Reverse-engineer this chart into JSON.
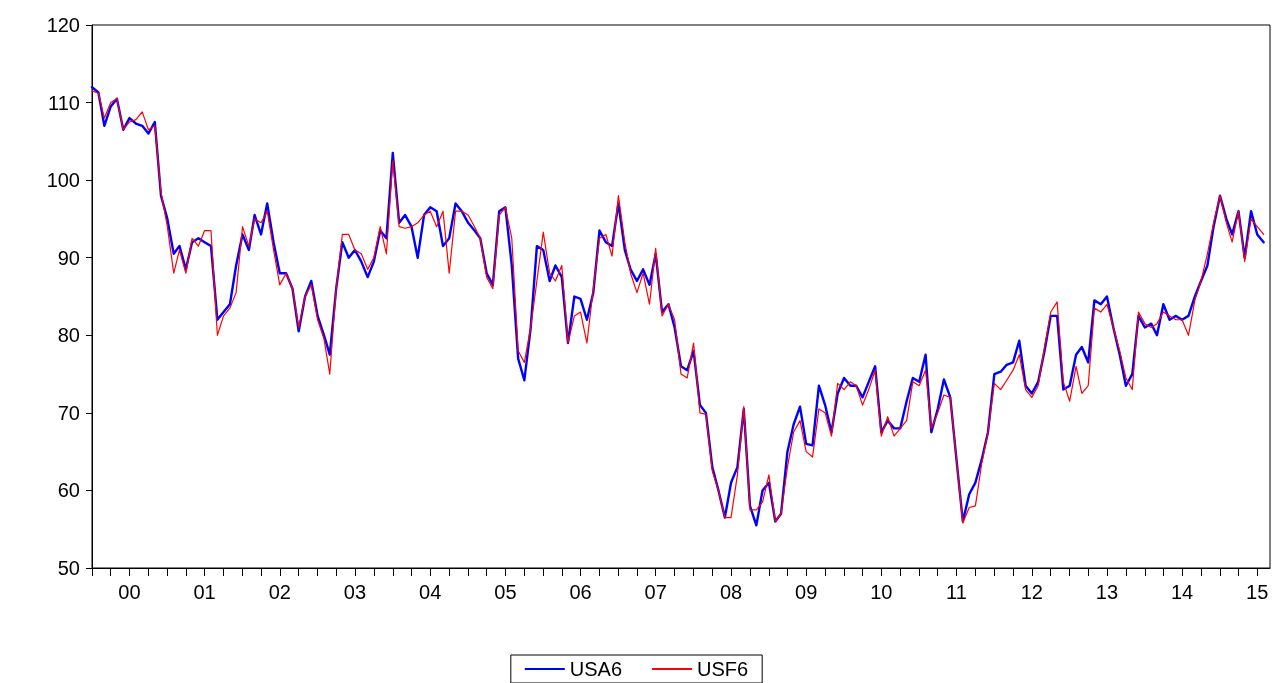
{
  "chart_data": {
    "type": "line",
    "x": [
      "2000-01",
      "2000-02",
      "2000-03",
      "2000-04",
      "2000-05",
      "2000-06",
      "2000-07",
      "2000-08",
      "2000-09",
      "2000-10",
      "2000-11",
      "2000-12",
      "2001-01",
      "2001-02",
      "2001-03",
      "2001-04",
      "2001-05",
      "2001-06",
      "2001-07",
      "2001-08",
      "2001-09",
      "2001-10",
      "2001-11",
      "2001-12",
      "2002-01",
      "2002-02",
      "2002-03",
      "2002-04",
      "2002-05",
      "2002-06",
      "2002-07",
      "2002-08",
      "2002-09",
      "2002-10",
      "2002-11",
      "2002-12",
      "2003-01",
      "2003-02",
      "2003-03",
      "2003-04",
      "2003-05",
      "2003-06",
      "2003-07",
      "2003-08",
      "2003-09",
      "2003-10",
      "2003-11",
      "2003-12",
      "2004-01",
      "2004-02",
      "2004-03",
      "2004-04",
      "2004-05",
      "2004-06",
      "2004-07",
      "2004-08",
      "2004-09",
      "2004-10",
      "2004-11",
      "2004-12",
      "2005-01",
      "2005-02",
      "2005-03",
      "2005-04",
      "2005-05",
      "2005-06",
      "2005-07",
      "2005-08",
      "2005-09",
      "2005-10",
      "2005-11",
      "2005-12",
      "2006-01",
      "2006-02",
      "2006-03",
      "2006-04",
      "2006-05",
      "2006-06",
      "2006-07",
      "2006-08",
      "2006-09",
      "2006-10",
      "2006-11",
      "2006-12",
      "2007-01",
      "2007-02",
      "2007-03",
      "2007-04",
      "2007-05",
      "2007-06",
      "2007-07",
      "2007-08",
      "2007-09",
      "2007-10",
      "2007-11",
      "2007-12",
      "2008-01",
      "2008-02",
      "2008-03",
      "2008-04",
      "2008-05",
      "2008-06",
      "2008-07",
      "2008-08",
      "2008-09",
      "2008-10",
      "2008-11",
      "2008-12",
      "2009-01",
      "2009-02",
      "2009-03",
      "2009-04",
      "2009-05",
      "2009-06",
      "2009-07",
      "2009-08",
      "2009-09",
      "2009-10",
      "2009-11",
      "2009-12",
      "2010-01",
      "2010-02",
      "2010-03",
      "2010-04",
      "2010-05",
      "2010-06",
      "2010-07",
      "2010-08",
      "2010-09",
      "2010-10",
      "2010-11",
      "2010-12",
      "2011-01",
      "2011-02",
      "2011-03",
      "2011-04",
      "2011-05",
      "2011-06",
      "2011-07",
      "2011-08",
      "2011-09",
      "2011-10",
      "2011-11",
      "2011-12",
      "2012-01",
      "2012-02",
      "2012-03",
      "2012-04",
      "2012-05",
      "2012-06",
      "2012-07",
      "2012-08",
      "2012-09",
      "2012-10",
      "2012-11",
      "2012-12",
      "2013-01",
      "2013-02",
      "2013-03",
      "2013-04",
      "2013-05",
      "2013-06",
      "2013-07",
      "2013-08",
      "2013-09",
      "2013-10",
      "2013-11",
      "2013-12",
      "2014-01",
      "2014-02",
      "2014-03",
      "2014-04",
      "2014-05",
      "2014-06",
      "2014-07",
      "2014-08",
      "2014-09",
      "2014-10",
      "2014-11",
      "2014-12",
      "2015-01",
      "2015-02",
      "2015-03",
      "2015-04",
      "2015-05",
      "2015-06",
      "2015-07",
      "2015-08"
    ],
    "series": [
      {
        "name": "USA6",
        "color": "#0000ff",
        "values": [
          112,
          111.3,
          107,
          109.5,
          110.5,
          106.5,
          108,
          107.3,
          107,
          106,
          107.5,
          98,
          95,
          90.5,
          91.5,
          88.5,
          92,
          92.5,
          92,
          91.5,
          82,
          83,
          84,
          89,
          93,
          91,
          95.5,
          93,
          97,
          92,
          88,
          88,
          86,
          80.5,
          85,
          87,
          82.5,
          80,
          77.5,
          86,
          92,
          90,
          91,
          89.5,
          87.5,
          89.5,
          93.5,
          92.5,
          103.5,
          94.5,
          95.5,
          94,
          90,
          95.5,
          96.5,
          96,
          91.5,
          92.5,
          97,
          96,
          94.5,
          93.5,
          92.5,
          88,
          86.5,
          96,
          96.5,
          89,
          77,
          74.2,
          81,
          91.5,
          91,
          87,
          89,
          87.5,
          79,
          85,
          84.7,
          82,
          85.5,
          93.5,
          92,
          91.5,
          97,
          91,
          88.5,
          87,
          88.5,
          86.5,
          90.5,
          83,
          84,
          81,
          76,
          75.5,
          78,
          71,
          70,
          63,
          60,
          56.5,
          61,
          63,
          70.5,
          58,
          55.5,
          60,
          61,
          56,
          57,
          65,
          68.5,
          70.8,
          66,
          65.8,
          73.5,
          71,
          67.5,
          72.5,
          74.5,
          73.5,
          73.5,
          72,
          74,
          76,
          67.5,
          69,
          68,
          68,
          71.5,
          74.5,
          74,
          77.5,
          67.5,
          70.5,
          74.3,
          72,
          64,
          56,
          59.5,
          61,
          64,
          67.5,
          75,
          75.3,
          76.2,
          76.5,
          79.3,
          73.5,
          72.5,
          74,
          78,
          82.5,
          82.5,
          73,
          73.5,
          77.5,
          78.5,
          76.5,
          84.5,
          84,
          85,
          81,
          77.5,
          73.5,
          75,
          82.5,
          81,
          81.5,
          80,
          84,
          82,
          82.5,
          82,
          82.5,
          85,
          87,
          89,
          94,
          98,
          95,
          93,
          96,
          90,
          96,
          93,
          92
        ]
      },
      {
        "name": "USF6",
        "color": "#ff0000",
        "values": [
          111.5,
          111.2,
          108,
          110,
          110.5,
          106.5,
          107.5,
          107.8,
          108.8,
          106.5,
          107,
          98.5,
          94,
          88,
          91,
          88,
          92.5,
          91.5,
          93.5,
          93.5,
          80,
          82.5,
          83.5,
          85.5,
          94,
          91.5,
          95,
          94.5,
          96,
          91,
          86.5,
          88,
          86,
          81,
          85,
          86.5,
          82,
          79.5,
          75,
          86,
          93,
          93,
          91,
          90.5,
          88.5,
          90,
          94,
          90.5,
          102.5,
          94,
          93.8,
          94,
          94.5,
          95.5,
          96,
          94,
          96,
          88,
          96,
          96,
          95.5,
          94,
          92.5,
          87.5,
          86,
          95.5,
          96.5,
          92.5,
          78,
          76.5,
          81,
          87,
          93.3,
          88,
          87,
          89,
          79,
          82.5,
          83,
          79,
          86,
          92.5,
          93,
          90.2,
          98,
          92,
          88,
          85.5,
          88,
          84,
          91.2,
          82.5,
          84,
          82,
          75,
          74.5,
          79,
          70,
          69.8,
          62.5,
          60,
          56.5,
          56.5,
          62,
          70.8,
          57.5,
          57.5,
          58.5,
          62,
          56,
          57,
          63,
          67.5,
          69,
          65,
          64.3,
          70.5,
          70,
          67,
          73.8,
          73,
          74,
          73.5,
          71,
          73,
          75.5,
          67,
          69.5,
          67,
          68,
          69,
          74,
          73.5,
          75.5,
          68,
          70,
          72.3,
          72,
          64,
          55.8,
          57.8,
          58,
          63.5,
          67.5,
          73.8,
          73,
          74.2,
          75.5,
          77.5,
          73,
          72,
          73.5,
          78.5,
          83,
          84.3,
          74,
          71.5,
          76,
          72.5,
          73.5,
          83.5,
          83,
          84,
          81,
          78,
          74.5,
          73,
          83,
          81.5,
          81,
          81.5,
          83,
          82.5,
          82,
          82,
          80,
          84.5,
          87,
          90.5,
          94.5,
          98,
          94.5,
          92,
          96,
          89.5,
          95,
          94,
          93
        ]
      }
    ],
    "xlim": [
      "2000-01",
      "2015-09"
    ],
    "xticks": [
      {
        "value": "2000-01",
        "label": null
      },
      {
        "value": "2000-04",
        "label": null
      },
      {
        "value": "2000-07",
        "label": "00"
      },
      {
        "value": "2000-10",
        "label": null
      },
      {
        "value": "2001-01",
        "label": null
      },
      {
        "value": "2001-04",
        "label": null
      },
      {
        "value": "2001-07",
        "label": "01"
      },
      {
        "value": "2001-10",
        "label": null
      },
      {
        "value": "2002-01",
        "label": null
      },
      {
        "value": "2002-04",
        "label": null
      },
      {
        "value": "2002-07",
        "label": "02"
      },
      {
        "value": "2002-10",
        "label": null
      },
      {
        "value": "2003-01",
        "label": null
      },
      {
        "value": "2003-04",
        "label": null
      },
      {
        "value": "2003-07",
        "label": "03"
      },
      {
        "value": "2003-10",
        "label": null
      },
      {
        "value": "2004-01",
        "label": null
      },
      {
        "value": "2004-04",
        "label": null
      },
      {
        "value": "2004-07",
        "label": "04"
      },
      {
        "value": "2004-10",
        "label": null
      },
      {
        "value": "2005-01",
        "label": null
      },
      {
        "value": "2005-04",
        "label": null
      },
      {
        "value": "2005-07",
        "label": "05"
      },
      {
        "value": "2005-10",
        "label": null
      },
      {
        "value": "2006-01",
        "label": null
      },
      {
        "value": "2006-04",
        "label": null
      },
      {
        "value": "2006-07",
        "label": "06"
      },
      {
        "value": "2006-10",
        "label": null
      },
      {
        "value": "2007-01",
        "label": null
      },
      {
        "value": "2007-04",
        "label": null
      },
      {
        "value": "2007-07",
        "label": "07"
      },
      {
        "value": "2007-10",
        "label": null
      },
      {
        "value": "2008-01",
        "label": null
      },
      {
        "value": "2008-04",
        "label": null
      },
      {
        "value": "2008-07",
        "label": "08"
      },
      {
        "value": "2008-10",
        "label": null
      },
      {
        "value": "2009-01",
        "label": null
      },
      {
        "value": "2009-04",
        "label": null
      },
      {
        "value": "2009-07",
        "label": "09"
      },
      {
        "value": "2009-10",
        "label": null
      },
      {
        "value": "2010-01",
        "label": null
      },
      {
        "value": "2010-04",
        "label": null
      },
      {
        "value": "2010-07",
        "label": "10"
      },
      {
        "value": "2010-10",
        "label": null
      },
      {
        "value": "2011-01",
        "label": null
      },
      {
        "value": "2011-04",
        "label": null
      },
      {
        "value": "2011-07",
        "label": "11"
      },
      {
        "value": "2011-10",
        "label": null
      },
      {
        "value": "2012-01",
        "label": null
      },
      {
        "value": "2012-04",
        "label": null
      },
      {
        "value": "2012-07",
        "label": "12"
      },
      {
        "value": "2012-10",
        "label": null
      },
      {
        "value": "2013-01",
        "label": null
      },
      {
        "value": "2013-04",
        "label": null
      },
      {
        "value": "2013-07",
        "label": "13"
      },
      {
        "value": "2013-10",
        "label": null
      },
      {
        "value": "2014-01",
        "label": null
      },
      {
        "value": "2014-04",
        "label": null
      },
      {
        "value": "2014-07",
        "label": "14"
      },
      {
        "value": "2014-10",
        "label": null
      },
      {
        "value": "2015-01",
        "label": null
      },
      {
        "value": "2015-04",
        "label": null
      },
      {
        "value": "2015-07",
        "label": "15"
      }
    ],
    "ylim": [
      50,
      120
    ],
    "yticks": [
      50,
      60,
      70,
      80,
      90,
      100,
      110,
      120
    ],
    "grid": false,
    "legend": "bottom",
    "marker": "none",
    "line_style": "solid"
  }
}
